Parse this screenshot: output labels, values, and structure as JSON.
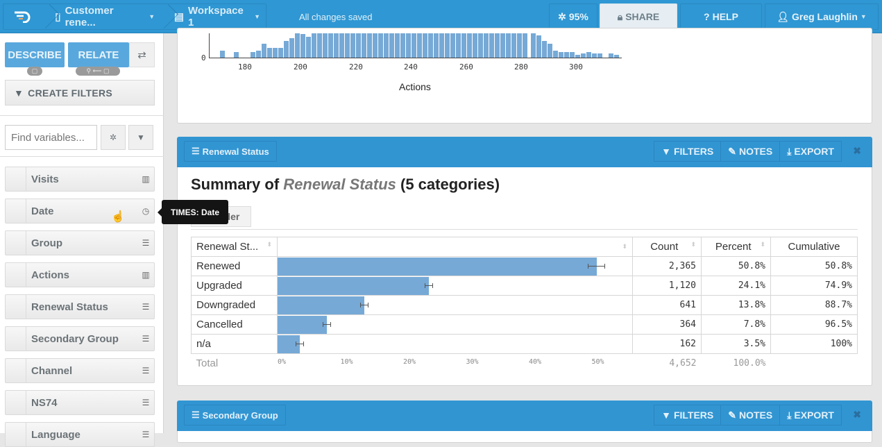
{
  "topbar": {
    "document_name": "Customer rene...",
    "workspace_name": "Workspace 1",
    "status": "All changes saved",
    "progress": "95%",
    "share_label": "SHARE",
    "help_label": "HELP",
    "user_name": "Greg Laughlin"
  },
  "sidebar": {
    "describe_label": "DESCRIBE",
    "relate_label": "RELATE",
    "create_filters_label": "CREATE FILTERS",
    "search_placeholder": "Find variables...",
    "variables": [
      {
        "label": "Visits",
        "icon": "bar-chart-icon"
      },
      {
        "label": "Date",
        "icon": "clock-icon"
      },
      {
        "label": "Group",
        "icon": "list-icon"
      },
      {
        "label": "Actions",
        "icon": "bar-chart-icon"
      },
      {
        "label": "Renewal Status",
        "icon": "list-icon"
      },
      {
        "label": "Secondary Group",
        "icon": "list-icon"
      },
      {
        "label": "Channel",
        "icon": "list-icon"
      },
      {
        "label": "NS74",
        "icon": "list-icon"
      },
      {
        "label": "Language",
        "icon": "list-icon"
      }
    ],
    "tooltip": "TIMES: Date"
  },
  "histogram": {
    "xlabel": "Actions",
    "y_tick": "0",
    "x_ticks": [
      "180",
      "200",
      "220",
      "240",
      "260",
      "280",
      "300"
    ]
  },
  "renewal_panel": {
    "title": "Renewal Status",
    "filters_label": "FILTERS",
    "notes_label": "NOTES",
    "export_label": "EXPORT",
    "summary_prefix": "Summary of ",
    "summary_var": "Renewal Status",
    "summary_suffix": " (5 categories)",
    "reorder_label": "Reorder",
    "columns": [
      "Renewal St...",
      "",
      "Count",
      "Percent",
      "Cumulative"
    ],
    "rows": [
      {
        "label": "Renewed",
        "pct": 50.8,
        "count": "2,365",
        "percent": "50.8%",
        "cumulative": "50.8%"
      },
      {
        "label": "Upgraded",
        "pct": 24.1,
        "count": "1,120",
        "percent": "24.1%",
        "cumulative": "74.9%"
      },
      {
        "label": "Downgraded",
        "pct": 13.8,
        "count": "641",
        "percent": "13.8%",
        "cumulative": "88.7%"
      },
      {
        "label": "Cancelled",
        "pct": 7.8,
        "count": "364",
        "percent": "7.8%",
        "cumulative": "96.5%"
      },
      {
        "label": "n/a",
        "pct": 3.5,
        "count": "162",
        "percent": "3.5%",
        "cumulative": "100%"
      }
    ],
    "total_label": "Total",
    "total_count": "4,652",
    "total_percent": "100.0%",
    "axis_ticks": [
      "0%",
      "10%",
      "20%",
      "30%",
      "40%",
      "50%"
    ]
  },
  "secondary_panel": {
    "title": "Secondary Group",
    "filters_label": "FILTERS",
    "notes_label": "NOTES",
    "export_label": "EXPORT"
  },
  "chart_data": {
    "type": "bar",
    "title": "Summary of Renewal Status (5 categories)",
    "categories": [
      "Renewed",
      "Upgraded",
      "Downgraded",
      "Cancelled",
      "n/a"
    ],
    "values": [
      50.8,
      24.1,
      13.8,
      7.8,
      3.5
    ],
    "counts": [
      2365,
      1120,
      641,
      364,
      162
    ],
    "xlabel": "",
    "ylabel": "Percent",
    "xlim": [
      0,
      55
    ]
  }
}
